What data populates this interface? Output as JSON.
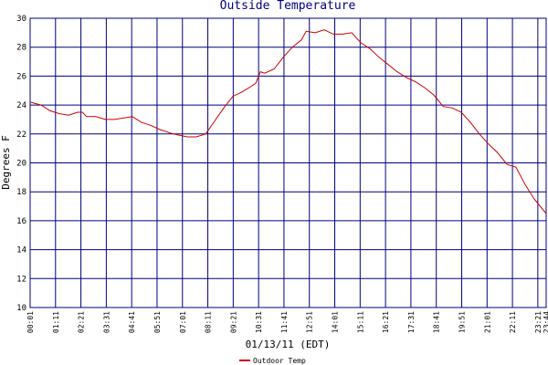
{
  "chart_data": {
    "type": "line",
    "title": "Outside Temperature",
    "y_label": "Degrees F",
    "x_label": "01/13/11 (EDT)",
    "x": [
      1,
      31,
      56,
      82,
      107,
      132,
      145,
      157,
      182,
      208,
      233,
      258,
      283,
      308,
      333,
      359,
      396,
      434,
      459,
      485,
      510,
      535,
      560,
      585,
      611,
      623,
      636,
      648,
      674,
      699,
      724,
      749,
      762,
      787,
      812,
      837,
      863,
      888,
      913,
      938,
      963,
      988,
      1013,
      1039,
      1064,
      1089,
      1114,
      1140,
      1165,
      1190,
      1215,
      1240,
      1265,
      1290,
      1316,
      1341,
      1366,
      1391,
      1424
    ],
    "series": [
      {
        "name": "Outdoor Temp",
        "color": "#cc0000",
        "values": [
          24.2,
          24.0,
          23.6,
          23.4,
          23.3,
          23.5,
          23.5,
          23.2,
          23.2,
          23.0,
          23.0,
          23.1,
          23.2,
          22.8,
          22.6,
          22.3,
          22.0,
          21.8,
          21.8,
          22.0,
          22.9,
          23.8,
          24.6,
          24.9,
          25.3,
          25.5,
          26.3,
          26.2,
          26.5,
          27.3,
          28.0,
          28.5,
          29.1,
          29.0,
          29.2,
          28.9,
          28.9,
          29.0,
          28.3,
          27.9,
          27.3,
          26.8,
          26.3,
          25.9,
          25.6,
          25.2,
          24.7,
          23.9,
          23.8,
          23.5,
          22.8,
          22.0,
          21.3,
          20.7,
          19.9,
          19.7,
          18.5,
          17.5,
          16.5
        ]
      }
    ],
    "xlim": [
      1,
      1424
    ],
    "xticks": [
      {
        "value": 1,
        "label": "00:01"
      },
      {
        "value": 71,
        "label": "01:11"
      },
      {
        "value": 141,
        "label": "02:21"
      },
      {
        "value": 211,
        "label": "03:31"
      },
      {
        "value": 281,
        "label": "04:41"
      },
      {
        "value": 351,
        "label": "05:51"
      },
      {
        "value": 421,
        "label": "07:01"
      },
      {
        "value": 491,
        "label": "08:11"
      },
      {
        "value": 561,
        "label": "09:21"
      },
      {
        "value": 631,
        "label": "10:31"
      },
      {
        "value": 701,
        "label": "11:41"
      },
      {
        "value": 771,
        "label": "12:51"
      },
      {
        "value": 841,
        "label": "14:01"
      },
      {
        "value": 911,
        "label": "15:11"
      },
      {
        "value": 981,
        "label": "16:21"
      },
      {
        "value": 1051,
        "label": "17:31"
      },
      {
        "value": 1121,
        "label": "18:41"
      },
      {
        "value": 1191,
        "label": "19:51"
      },
      {
        "value": 1261,
        "label": "21:01"
      },
      {
        "value": 1331,
        "label": "22:11"
      },
      {
        "value": 1401,
        "label": "23:21"
      },
      {
        "value": 1424,
        "label": "23:44"
      }
    ],
    "ylim": [
      10,
      30
    ],
    "yticks": [
      10,
      12,
      14,
      16,
      18,
      20,
      22,
      24,
      26,
      28,
      30
    ],
    "grid": true,
    "grid_color": "#000080",
    "legend": "bottom"
  }
}
